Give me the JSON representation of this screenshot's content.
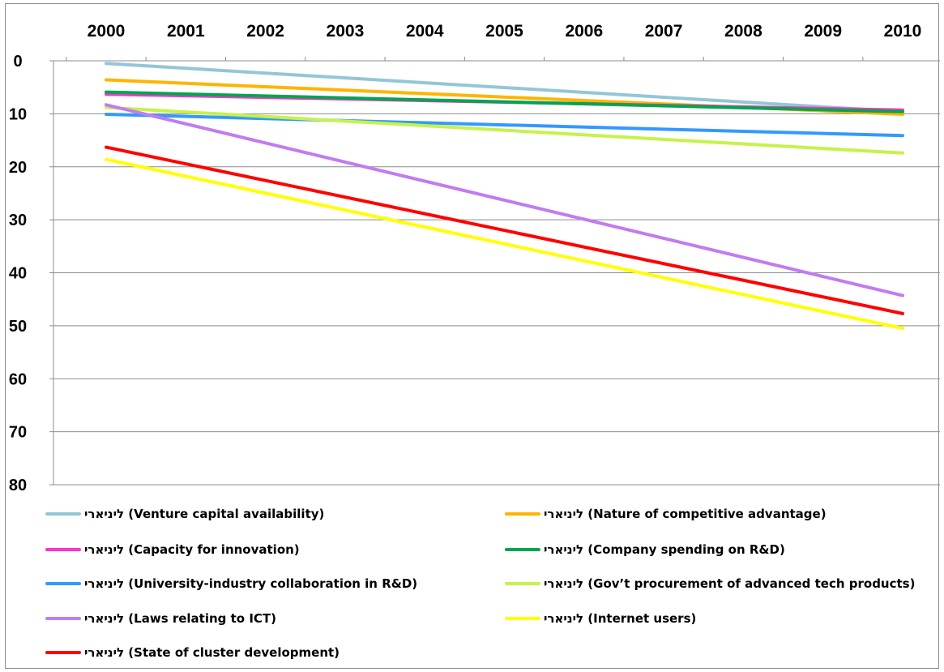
{
  "chart_data": {
    "type": "line",
    "title": "",
    "xlabel": "",
    "ylabel": "",
    "x": [
      2000,
      2001,
      2002,
      2003,
      2004,
      2005,
      2006,
      2007,
      2008,
      2009,
      2010
    ],
    "x_tick_labels": [
      "2000",
      "2001",
      "2002",
      "2003",
      "2004",
      "2005",
      "2006",
      "2007",
      "2008",
      "2009",
      "2010"
    ],
    "y_tick_labels": [
      "0",
      "10",
      "20",
      "30",
      "40",
      "50",
      "60",
      "70",
      "80"
    ],
    "ylim": [
      0,
      80
    ],
    "y_reversed": true,
    "x_axis_position": "top",
    "grid": "horizontal",
    "legend_position": "bottom",
    "series": [
      {
        "name": "ליניארי (Venture capital availability)",
        "color": "#93c6d6",
        "x": [
          2000,
          2010
        ],
        "values": [
          0.5,
          9.6
        ]
      },
      {
        "name": "ליניארי (Nature of competitive advantage)",
        "color": "#ffb400",
        "x": [
          2000,
          2010
        ],
        "values": [
          3.6,
          10.1
        ]
      },
      {
        "name": "ליניארי (Capacity for innovation)",
        "color": "#ff33cc",
        "x": [
          2000,
          2010
        ],
        "values": [
          6.3,
          9.3
        ]
      },
      {
        "name": "ליניארי (Company spending on R&D)",
        "color": "#00a550",
        "x": [
          2000,
          2010
        ],
        "values": [
          5.9,
          9.6
        ]
      },
      {
        "name": "ליניארי (University-industry collaboration in R&D)",
        "color": "#3399ff",
        "x": [
          2000,
          2010
        ],
        "values": [
          10.1,
          14.1
        ]
      },
      {
        "name": "ליניארי (Gov’t procurement of advanced tech products)",
        "color": "#c6f24a",
        "x": [
          2000,
          2010
        ],
        "values": [
          8.8,
          17.4
        ]
      },
      {
        "name": "ליניארי (Laws relating to ICT)",
        "color": "#c07cf0",
        "x": [
          2000,
          2010
        ],
        "values": [
          8.3,
          44.3
        ]
      },
      {
        "name": "ליניארי (Internet users)",
        "color": "#ffff00",
        "x": [
          2000,
          2010
        ],
        "values": [
          18.6,
          50.5
        ]
      },
      {
        "name": "ליניארי (State of cluster development)",
        "color": "#ff0000",
        "x": [
          2000,
          2010
        ],
        "values": [
          16.3,
          47.7
        ]
      }
    ],
    "legend_order": [
      0,
      1,
      2,
      3,
      4,
      5,
      6,
      7,
      8
    ]
  }
}
